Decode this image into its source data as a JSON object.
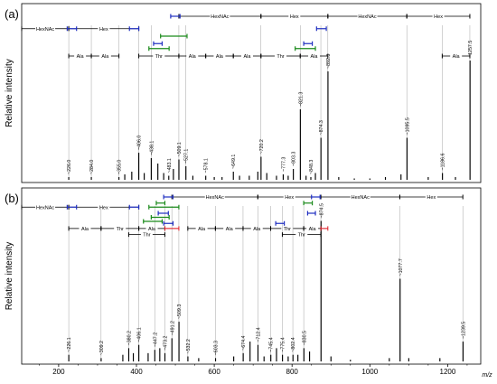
{
  "chart_data": {
    "type": "bar",
    "x_axis": {
      "label": "m/z",
      "ticks": [
        200,
        400,
        600,
        800,
        1000,
        1200
      ],
      "range": [
        105,
        1285
      ]
    },
    "y_label": "Relative intensity",
    "colors": {
      "peaks": "#000000",
      "guides": "#9a9a9a",
      "hex_pair": "#1f2ec0",
      "ala_pair": "#1a8a1a",
      "highlight": "#e0202a"
    },
    "panels": [
      {
        "label": "(a)",
        "peaks": [
          {
            "x": 226.0,
            "y": 0.02,
            "label": "226.0"
          },
          {
            "x": 284.0,
            "y": 0.02,
            "label": "284.0"
          },
          {
            "x": 355.0,
            "y": 0.02,
            "label": "355.0"
          },
          {
            "x": 370,
            "y": 0.04
          },
          {
            "x": 388,
            "y": 0.06
          },
          {
            "x": 406.0,
            "y": 0.2,
            "label": "406.0"
          },
          {
            "x": 420,
            "y": 0.05
          },
          {
            "x": 438.1,
            "y": 0.16,
            "label": "438.1"
          },
          {
            "x": 455,
            "y": 0.12
          },
          {
            "x": 470,
            "y": 0.05
          },
          {
            "x": 483.1,
            "y": 0.03,
            "label": "483.1"
          },
          {
            "x": 495,
            "y": 0.08
          },
          {
            "x": 509.1,
            "y": 0.15,
            "label": "509.1"
          },
          {
            "x": 527.1,
            "y": 0.1,
            "label": "527.1"
          },
          {
            "x": 545,
            "y": 0.03
          },
          {
            "x": 578.1,
            "y": 0.03,
            "label": "578.1"
          },
          {
            "x": 600,
            "y": 0.02
          },
          {
            "x": 620,
            "y": 0.02
          },
          {
            "x": 649.1,
            "y": 0.06,
            "label": "649.1"
          },
          {
            "x": 665,
            "y": 0.03
          },
          {
            "x": 690,
            "y": 0.03
          },
          {
            "x": 712,
            "y": 0.06
          },
          {
            "x": 720.2,
            "y": 0.17,
            "label": "720.2"
          },
          {
            "x": 735,
            "y": 0.05
          },
          {
            "x": 760,
            "y": 0.03
          },
          {
            "x": 777.3,
            "y": 0.04,
            "label": "777.3"
          },
          {
            "x": 790,
            "y": 0.03
          },
          {
            "x": 803.3,
            "y": 0.08,
            "label": "803.3"
          },
          {
            "x": 821.3,
            "y": 0.52,
            "label": "821.3"
          },
          {
            "x": 836,
            "y": 0.03
          },
          {
            "x": 848.3,
            "y": 0.02,
            "label": "848.3"
          },
          {
            "x": 860,
            "y": 0.05
          },
          {
            "x": 874.3,
            "y": 0.31,
            "label": "874.3"
          },
          {
            "x": 892.3,
            "y": 0.8,
            "label": "892.3"
          },
          {
            "x": 920,
            "y": 0.02
          },
          {
            "x": 960,
            "y": 0.01
          },
          {
            "x": 1000,
            "y": 0.01
          },
          {
            "x": 1040,
            "y": 0.02
          },
          {
            "x": 1080,
            "y": 0.04
          },
          {
            "x": 1095.5,
            "y": 0.31,
            "label": "1095.5"
          },
          {
            "x": 1150,
            "y": 0.02
          },
          {
            "x": 1186.6,
            "y": 0.05,
            "label": "1186.6"
          },
          {
            "x": 1220,
            "y": 0.02
          },
          {
            "x": 1257.5,
            "y": 0.88,
            "label": "1257.5"
          }
        ],
        "guide_lines": [
          226,
          284,
          355,
          406,
          438,
          509,
          527,
          720,
          821,
          874,
          892,
          1095,
          1186,
          1257
        ],
        "annotations": [
          {
            "row": 0,
            "kind": "seg",
            "x1": 509,
            "x2": 720,
            "label": "HexNAc"
          },
          {
            "row": 0,
            "kind": "seg",
            "x1": 720,
            "x2": 892,
            "label": "Hex"
          },
          {
            "row": 0,
            "kind": "seg",
            "x1": 892,
            "x2": 1095,
            "label": "HexNAc"
          },
          {
            "row": 0,
            "kind": "seg",
            "x1": 1095,
            "x2": 1257,
            "label": "Hex"
          },
          {
            "row": 0,
            "kind": "pair",
            "x1": 488,
            "x2": 512,
            "color": "hex_pair"
          },
          {
            "row": 1,
            "kind": "seg",
            "x1": 105,
            "x2": 226,
            "label": "HexNAc"
          },
          {
            "row": 1,
            "kind": "seg",
            "x1": 226,
            "x2": 406,
            "label": "Hex"
          },
          {
            "row": 1,
            "kind": "pair",
            "x1": 222,
            "x2": 246,
            "color": "hex_pair"
          },
          {
            "row": 1,
            "kind": "pair",
            "x1": 382,
            "x2": 406,
            "color": "hex_pair"
          },
          {
            "row": 1,
            "kind": "pair",
            "x1": 863,
            "x2": 888,
            "color": "hex_pair"
          },
          {
            "row": 1.6,
            "kind": "pair",
            "x1": 462,
            "x2": 530,
            "color": "ala_pair"
          },
          {
            "row": 2.2,
            "kind": "pair",
            "x1": 444,
            "x2": 466,
            "color": "hex_pair"
          },
          {
            "row": 2.2,
            "kind": "pair",
            "x1": 830,
            "x2": 852,
            "color": "hex_pair"
          },
          {
            "row": 2.6,
            "kind": "pair",
            "x1": 432,
            "x2": 484,
            "color": "ala_pair"
          },
          {
            "row": 2.6,
            "kind": "pair",
            "x1": 808,
            "x2": 860,
            "color": "ala_pair"
          },
          {
            "row": 3.2,
            "kind": "seg",
            "x1": 226,
            "x2": 284,
            "label": "Ala"
          },
          {
            "row": 3.2,
            "kind": "seg",
            "x1": 284,
            "x2": 355,
            "label": "Ala"
          },
          {
            "row": 3.2,
            "kind": "seg",
            "x1": 406,
            "x2": 509,
            "label": "Thr"
          },
          {
            "row": 3.2,
            "kind": "seg",
            "x1": 509,
            "x2": 578,
            "label": "Ala"
          },
          {
            "row": 3.2,
            "kind": "seg",
            "x1": 578,
            "x2": 649,
            "label": "Ala"
          },
          {
            "row": 3.2,
            "kind": "seg",
            "x1": 649,
            "x2": 720,
            "label": "Ala"
          },
          {
            "row": 3.2,
            "kind": "seg",
            "x1": 720,
            "x2": 821,
            "label": "Thr"
          },
          {
            "row": 3.2,
            "kind": "seg",
            "x1": 821,
            "x2": 892,
            "label": "Ala"
          },
          {
            "row": 3.2,
            "kind": "seg",
            "x1": 1186,
            "x2": 1257,
            "label": "Ala"
          }
        ]
      },
      {
        "label": "(b)",
        "peaks": [
          {
            "x": 226.1,
            "y": 0.04,
            "label": "226.1"
          },
          {
            "x": 309.2,
            "y": 0.02,
            "label": "309.2"
          },
          {
            "x": 365,
            "y": 0.04
          },
          {
            "x": 380.2,
            "y": 0.08,
            "label": "380.2"
          },
          {
            "x": 392,
            "y": 0.05
          },
          {
            "x": 406.1,
            "y": 0.1,
            "label": "406.1"
          },
          {
            "x": 430,
            "y": 0.05
          },
          {
            "x": 447.2,
            "y": 0.07,
            "label": "447.2"
          },
          {
            "x": 460,
            "y": 0.08
          },
          {
            "x": 473.2,
            "y": 0.05,
            "label": "473.2"
          },
          {
            "x": 491.2,
            "y": 0.14,
            "label": "491.2"
          },
          {
            "x": 509.3,
            "y": 0.24,
            "label": "509.3"
          },
          {
            "x": 532.2,
            "y": 0.03,
            "label": "532.2"
          },
          {
            "x": 560,
            "y": 0.02
          },
          {
            "x": 603.3,
            "y": 0.02,
            "label": "603.3"
          },
          {
            "x": 650,
            "y": 0.03
          },
          {
            "x": 674.4,
            "y": 0.05,
            "label": "674.4"
          },
          {
            "x": 692,
            "y": 0.12
          },
          {
            "x": 712.4,
            "y": 0.1,
            "label": "712.4"
          },
          {
            "x": 728,
            "y": 0.03
          },
          {
            "x": 745.4,
            "y": 0.04,
            "label": "745.4"
          },
          {
            "x": 760,
            "y": 0.08
          },
          {
            "x": 775.4,
            "y": 0.04,
            "label": "775.4"
          },
          {
            "x": 790,
            "y": 0.03
          },
          {
            "x": 802.4,
            "y": 0.04,
            "label": "802.4"
          },
          {
            "x": 815,
            "y": 0.04
          },
          {
            "x": 830.5,
            "y": 0.08,
            "label": "830.5"
          },
          {
            "x": 845,
            "y": 0.06
          },
          {
            "x": 874.5,
            "y": 0.85,
            "label": "874.5"
          },
          {
            "x": 900,
            "y": 0.03
          },
          {
            "x": 950,
            "y": 0.01
          },
          {
            "x": 1050,
            "y": 0.02
          },
          {
            "x": 1077.7,
            "y": 0.5,
            "label": "1077.7"
          },
          {
            "x": 1100,
            "y": 0.02
          },
          {
            "x": 1180,
            "y": 0.02
          },
          {
            "x": 1239.5,
            "y": 0.12,
            "label": "1239.5"
          }
        ],
        "guide_lines": [
          226,
          309,
          380,
          406,
          447,
          473,
          491,
          509,
          532,
          603,
          674,
          712,
          745,
          775,
          802,
          830,
          874,
          1077,
          1239
        ],
        "annotations": [
          {
            "row": 0,
            "kind": "seg",
            "x1": 491,
            "x2": 712,
            "label": "HexNAc"
          },
          {
            "row": 0,
            "kind": "seg",
            "x1": 712,
            "x2": 874,
            "label": "Hex"
          },
          {
            "row": 0,
            "kind": "seg",
            "x1": 874,
            "x2": 1077,
            "label": "HexNAc"
          },
          {
            "row": 0,
            "kind": "seg",
            "x1": 1077,
            "x2": 1239,
            "label": "Hex"
          },
          {
            "row": 0,
            "kind": "pair",
            "x1": 470,
            "x2": 494,
            "color": "hex_pair"
          },
          {
            "row": 0,
            "kind": "pair",
            "x1": 850,
            "x2": 872,
            "color": "hex_pair"
          },
          {
            "row": 0.6,
            "kind": "pair",
            "x1": 451,
            "x2": 473,
            "color": "ala_pair"
          },
          {
            "row": 0.6,
            "kind": "pair",
            "x1": 830,
            "x2": 852,
            "color": "ala_pair"
          },
          {
            "row": 1,
            "kind": "seg",
            "x1": 105,
            "x2": 226,
            "label": "HexNAc"
          },
          {
            "row": 1,
            "kind": "seg",
            "x1": 226,
            "x2": 406,
            "label": "Hex"
          },
          {
            "row": 1,
            "kind": "pair",
            "x1": 222,
            "x2": 246,
            "color": "hex_pair"
          },
          {
            "row": 1,
            "kind": "pair",
            "x1": 382,
            "x2": 406,
            "color": "hex_pair"
          },
          {
            "row": 1,
            "kind": "pair",
            "x1": 432,
            "x2": 509,
            "color": "ala_pair"
          },
          {
            "row": 1.6,
            "kind": "pair",
            "x1": 456,
            "x2": 482,
            "color": "hex_pair"
          },
          {
            "row": 1.6,
            "kind": "pair",
            "x1": 840,
            "x2": 860,
            "color": "hex_pair"
          },
          {
            "row": 2.0,
            "kind": "pair",
            "x1": 438,
            "x2": 484,
            "color": "ala_pair"
          },
          {
            "row": 2.4,
            "kind": "pair",
            "x1": 418,
            "x2": 466,
            "color": "ala_pair"
          },
          {
            "row": 2.6,
            "kind": "pair",
            "x1": 470,
            "x2": 494,
            "color": "hex_pair"
          },
          {
            "row": 2.6,
            "kind": "pair",
            "x1": 758,
            "x2": 780,
            "color": "hex_pair"
          },
          {
            "row": 3.1,
            "kind": "seg",
            "x1": 226,
            "x2": 309,
            "label": "Ala"
          },
          {
            "row": 3.1,
            "kind": "seg",
            "x1": 309,
            "x2": 406,
            "label": "Thr"
          },
          {
            "row": 3.1,
            "kind": "seg",
            "x1": 406,
            "x2": 473,
            "label": "Ala"
          },
          {
            "row": 3.1,
            "kind": "seg",
            "x1": 473,
            "x2": 509,
            "color": "highlight"
          },
          {
            "row": 3.1,
            "kind": "seg",
            "x1": 532,
            "x2": 603,
            "label": "Ala"
          },
          {
            "row": 3.1,
            "kind": "seg",
            "x1": 603,
            "x2": 674,
            "label": "Ala"
          },
          {
            "row": 3.1,
            "kind": "seg",
            "x1": 674,
            "x2": 745,
            "label": "Ala"
          },
          {
            "row": 3.1,
            "kind": "seg",
            "x1": 745,
            "x2": 830,
            "label": "Thr"
          },
          {
            "row": 3.1,
            "kind": "seg",
            "x1": 830,
            "x2": 874,
            "label": "Ala"
          },
          {
            "row": 3.1,
            "kind": "seg",
            "x1": 874,
            "x2": 892,
            "color": "highlight"
          },
          {
            "row": 3.7,
            "kind": "seg",
            "x1": 380,
            "x2": 473,
            "label": "Thr"
          },
          {
            "row": 3.7,
            "kind": "seg",
            "x1": 775,
            "x2": 874,
            "label": "Thr"
          }
        ]
      }
    ]
  }
}
